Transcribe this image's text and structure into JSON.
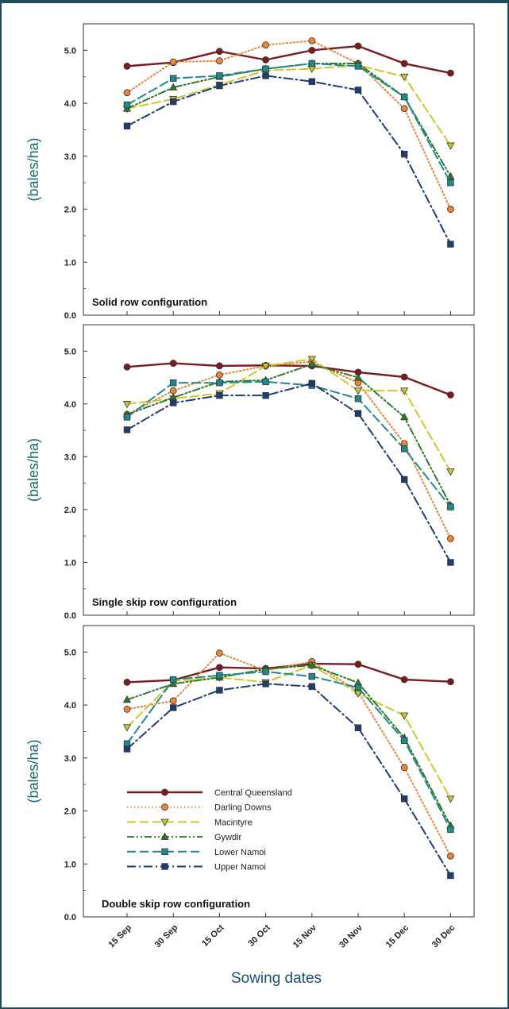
{
  "chart_data": {
    "type": "line",
    "x": [
      "15 Sep",
      "30 Sep",
      "15 Oct",
      "30 Oct",
      "15 Nov",
      "30 Nov",
      "15 Dec",
      "30 Dec"
    ],
    "xlabel": "Sowing dates",
    "ylabel": "(bales/ha)",
    "ylim": [
      0,
      5.5
    ],
    "yticks": [
      "0.0",
      "1.0",
      "2.0",
      "3.0",
      "4.0",
      "5.0"
    ],
    "legend": {
      "placement": "lower-left of bottom panel"
    },
    "series_style": [
      {
        "name": "Central Queensland",
        "color": "#7b1a1f",
        "dash": "solid",
        "marker": "circle"
      },
      {
        "name": "Darling Downs",
        "color": "#e8873a",
        "dash": "dotted",
        "marker": "circle"
      },
      {
        "name": "Macintyre",
        "color": "#c9c92e",
        "dash": "long-dash",
        "marker": "triangle-down"
      },
      {
        "name": "Gywdir",
        "color": "#2e7a2a",
        "dash": "dash-dot-dot",
        "marker": "triangle-up"
      },
      {
        "name": "Lower Namoi",
        "color": "#1f8a8a",
        "dash": "long-dash",
        "marker": "square"
      },
      {
        "name": "Upper Namoi",
        "color": "#1f3c73",
        "dash": "dash-dot",
        "marker": "square"
      }
    ],
    "panels": [
      {
        "title": "Solid row configuration",
        "series": [
          {
            "name": "Central Queensland",
            "values": [
              4.7,
              4.77,
              4.98,
              4.82,
              5.0,
              5.08,
              4.75,
              4.57
            ]
          },
          {
            "name": "Darling Downs",
            "values": [
              4.2,
              4.78,
              4.8,
              5.1,
              5.18,
              4.75,
              3.9,
              2.0
            ]
          },
          {
            "name": "Macintyre",
            "values": [
              3.9,
              4.08,
              4.35,
              4.62,
              4.65,
              4.72,
              4.5,
              3.2
            ]
          },
          {
            "name": "Gywdir",
            "values": [
              3.9,
              4.3,
              4.5,
              4.65,
              4.75,
              4.75,
              4.12,
              2.62
            ]
          },
          {
            "name": "Lower Namoi",
            "values": [
              3.97,
              4.47,
              4.52,
              4.65,
              4.75,
              4.7,
              4.12,
              2.5
            ]
          },
          {
            "name": "Upper Namoi",
            "values": [
              3.57,
              4.03,
              4.33,
              4.52,
              4.41,
              4.25,
              3.04,
              1.34
            ]
          }
        ]
      },
      {
        "title": "Single skip row configuration",
        "series": [
          {
            "name": "Central Queensland",
            "values": [
              4.7,
              4.77,
              4.72,
              4.73,
              4.72,
              4.6,
              4.51,
              4.17
            ]
          },
          {
            "name": "Darling Downs",
            "values": [
              3.8,
              4.25,
              4.55,
              4.72,
              4.8,
              4.4,
              3.25,
              1.45
            ]
          },
          {
            "name": "Macintyre",
            "values": [
              4.0,
              4.1,
              4.2,
              4.72,
              4.85,
              4.25,
              4.25,
              2.72
            ]
          },
          {
            "name": "Gywdir",
            "values": [
              3.8,
              4.12,
              4.42,
              4.45,
              4.75,
              4.5,
              3.75,
              2.08
            ]
          },
          {
            "name": "Lower Namoi",
            "values": [
              3.75,
              4.4,
              4.4,
              4.42,
              4.35,
              4.1,
              3.15,
              2.05
            ]
          },
          {
            "name": "Upper Namoi",
            "values": [
              3.51,
              4.02,
              4.16,
              4.16,
              4.39,
              3.82,
              2.57,
              1.0
            ]
          }
        ]
      },
      {
        "title": "Double skip row configuration",
        "series": [
          {
            "name": "Central Queensland",
            "values": [
              4.43,
              4.47,
              4.71,
              4.69,
              4.78,
              4.77,
              4.48,
              4.44
            ]
          },
          {
            "name": "Darling Downs",
            "values": [
              3.92,
              4.08,
              4.98,
              4.65,
              4.82,
              4.25,
              2.82,
              1.15
            ]
          },
          {
            "name": "Macintyre",
            "values": [
              3.58,
              4.45,
              4.52,
              4.43,
              4.75,
              4.22,
              3.8,
              2.23
            ]
          },
          {
            "name": "Gywdir",
            "values": [
              4.1,
              4.4,
              4.52,
              4.68,
              4.75,
              4.42,
              3.38,
              1.72
            ]
          },
          {
            "name": "Lower Namoi",
            "values": [
              3.27,
              4.48,
              4.56,
              4.63,
              4.54,
              4.33,
              3.33,
              1.65
            ]
          },
          {
            "name": "Upper Namoi",
            "values": [
              3.17,
              3.95,
              4.28,
              4.4,
              4.35,
              3.57,
              2.23,
              0.78
            ]
          }
        ]
      }
    ]
  }
}
